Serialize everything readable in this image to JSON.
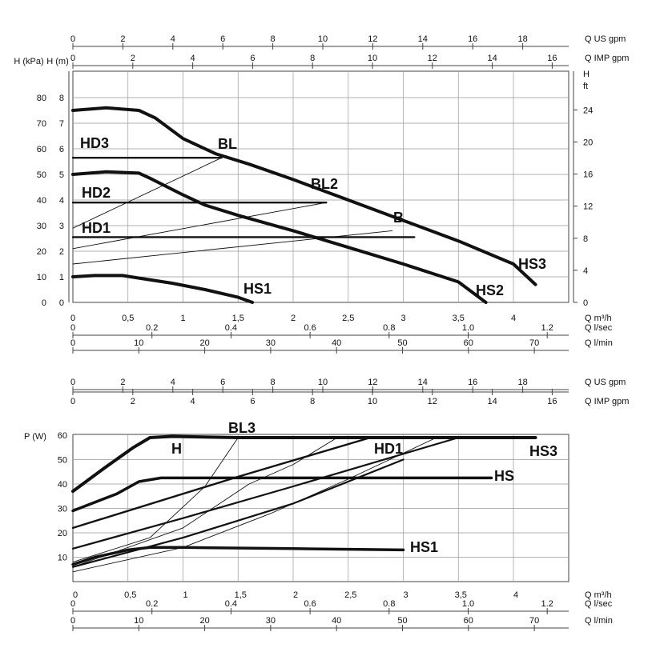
{
  "chart_data": [
    {
      "type": "line",
      "title": "",
      "xlabel": "Q m³/h",
      "xlim": [
        0,
        4.5
      ],
      "x_ticks": [
        "0",
        "0,5",
        "1",
        "1,5",
        "2",
        "2,5",
        "3",
        "3,5",
        "4"
      ],
      "ylabels": {
        "h_kpa": "H (kPa)",
        "h_m": "H (m)",
        "h_ft": "H ft"
      },
      "y_kpa_ticks": [
        "0",
        "10",
        "20",
        "30",
        "40",
        "50",
        "60",
        "70",
        "80"
      ],
      "y_m_ticks": [
        "0",
        "1",
        "2",
        "3",
        "4",
        "5",
        "6",
        "7",
        "8"
      ],
      "y_ft_ticks": [
        "0",
        "4",
        "8",
        "12",
        "16",
        "20",
        "24"
      ],
      "ylim_m": [
        0,
        9
      ],
      "top_axes": [
        {
          "label": "Q US gpm",
          "ticks": [
            "0",
            "2",
            "4",
            "6",
            "8",
            "10",
            "12",
            "14",
            "16",
            "18"
          ]
        },
        {
          "label": "Q IMP gpm",
          "ticks": [
            "0",
            "2",
            "4",
            "6",
            "8",
            "10",
            "12",
            "14",
            "16"
          ]
        }
      ],
      "bottom_axes": [
        {
          "label": "Q l/sec",
          "ticks": [
            "0",
            "0.2",
            "0.4",
            "0.6",
            "0.8",
            "1.0",
            "1.2"
          ]
        },
        {
          "label": "Q l/min",
          "ticks": [
            "0",
            "10",
            "20",
            "30",
            "40",
            "50",
            "60",
            "70"
          ]
        }
      ],
      "grid": true,
      "series": [
        {
          "name": "HS3",
          "x": [
            0,
            0.3,
            0.6,
            0.75,
            1.0,
            1.3,
            1.6,
            2.0,
            2.5,
            3.0,
            3.5,
            4.0,
            4.2
          ],
          "y": [
            7.5,
            7.6,
            7.5,
            7.2,
            6.4,
            5.8,
            5.4,
            4.8,
            4.0,
            3.2,
            2.4,
            1.5,
            0.7
          ]
        },
        {
          "name": "HS2",
          "x": [
            0,
            0.3,
            0.6,
            0.7,
            1.0,
            1.2,
            1.5,
            2.0,
            2.5,
            3.0,
            3.5,
            3.75
          ],
          "y": [
            5.0,
            5.1,
            5.05,
            4.85,
            4.2,
            3.8,
            3.4,
            2.8,
            2.15,
            1.5,
            0.8,
            0.0
          ]
        },
        {
          "name": "HS1",
          "x": [
            0,
            0.2,
            0.45,
            0.6,
            0.9,
            1.2,
            1.5,
            1.63
          ],
          "y": [
            1.0,
            1.05,
            1.05,
            0.95,
            0.75,
            0.5,
            0.2,
            0.0
          ]
        },
        {
          "name": "HD3",
          "x": [
            0,
            1.35
          ],
          "y": [
            5.65,
            5.65
          ]
        },
        {
          "name": "HD2",
          "x": [
            0,
            2.3
          ],
          "y": [
            3.9,
            3.9
          ]
        },
        {
          "name": "HD1",
          "x": [
            0,
            3.1
          ],
          "y": [
            2.55,
            2.55
          ]
        },
        {
          "name": "BL",
          "x": [
            0,
            1.35
          ],
          "y": [
            2.9,
            5.65
          ]
        },
        {
          "name": "BL2",
          "x": [
            0,
            2.3
          ],
          "y": [
            2.1,
            3.9
          ]
        },
        {
          "name": "B",
          "x": [
            0,
            2.9
          ],
          "y": [
            1.5,
            2.8
          ]
        }
      ]
    },
    {
      "type": "line",
      "title": "",
      "ylabel": "P (W)",
      "xlabel": "Q m³/h",
      "xlim": [
        0,
        4.5
      ],
      "ylim": [
        0,
        60
      ],
      "x_ticks": [
        "0",
        "0,5",
        "1",
        "1,5",
        "2",
        "2,5",
        "3",
        "3,5",
        "4"
      ],
      "y_ticks": [
        "10",
        "20",
        "30",
        "40",
        "50",
        "60"
      ],
      "top_axes": [
        {
          "label": "Q US gpm",
          "ticks": [
            "0",
            "2",
            "4",
            "6",
            "8",
            "10",
            "12",
            "14",
            "16",
            "18"
          ]
        },
        {
          "label": "Q IMP gpm",
          "ticks": [
            "0",
            "2",
            "4",
            "6",
            "8",
            "10",
            "12",
            "14",
            "16"
          ]
        }
      ],
      "bottom_axes": [
        {
          "label": "Q l/sec",
          "ticks": [
            "0",
            "0.2",
            "0.4",
            "0.6",
            "0.8",
            "1.0",
            "1.2"
          ]
        },
        {
          "label": "Q l/min",
          "ticks": [
            "0",
            "10",
            "20",
            "30",
            "40",
            "50",
            "60",
            "70"
          ]
        }
      ],
      "grid": true,
      "series": [
        {
          "name": "HS3",
          "x": [
            0,
            0.3,
            0.55,
            0.7,
            0.9,
            1.5,
            2.5,
            3.5,
            4.2
          ],
          "y": [
            37,
            47,
            55,
            59,
            59.5,
            59,
            59,
            59,
            59
          ]
        },
        {
          "name": "HS",
          "x": [
            0,
            0.4,
            0.6,
            0.8,
            1.0,
            2.0,
            3.0,
            3.8
          ],
          "y": [
            29,
            36,
            41,
            42.5,
            42.5,
            42.5,
            42.5,
            42.5
          ]
        },
        {
          "name": "HS1",
          "x": [
            0,
            0.2,
            0.5,
            0.7,
            1.0,
            2.0,
            3.0
          ],
          "y": [
            7,
            10,
            13,
            14,
            14,
            13.5,
            13
          ]
        },
        {
          "name": "HD1",
          "x": [
            0,
            1.5,
            2.7
          ],
          "y": [
            22,
            43,
            59
          ]
        },
        {
          "name": "",
          "x": [
            0,
            1.0,
            2.0,
            3.5
          ],
          "y": [
            13.5,
            26,
            39,
            59
          ]
        },
        {
          "name": "",
          "x": [
            0,
            1.0,
            2.0,
            3.0
          ],
          "y": [
            6,
            18,
            32,
            50
          ]
        },
        {
          "name": "",
          "x": [
            0,
            1.0,
            1.6,
            2.0,
            2.4
          ],
          "y": [
            6,
            22,
            40,
            48,
            59
          ]
        },
        {
          "name": "",
          "x": [
            0,
            0.7,
            1.2,
            1.5
          ],
          "y": [
            8,
            18,
            39,
            59
          ]
        },
        {
          "name": "",
          "x": [
            0,
            1.0,
            1.8,
            2.5,
            3.3
          ],
          "y": [
            4,
            14,
            28,
            42,
            59
          ]
        }
      ]
    }
  ],
  "labels": {
    "upper": {
      "HD3": "HD3",
      "BL": "BL",
      "HD2": "HD2",
      "BL2": "BL2",
      "HD1": "HD1",
      "B": "B",
      "HS3": "HS3",
      "HS2": "HS2",
      "HS1": "HS1"
    },
    "lower": {
      "BL3": "BL3",
      "H": "H",
      "HD1": "HD1",
      "HS3": "HS3",
      "HS": "HS",
      "HS1": "HS1"
    }
  }
}
